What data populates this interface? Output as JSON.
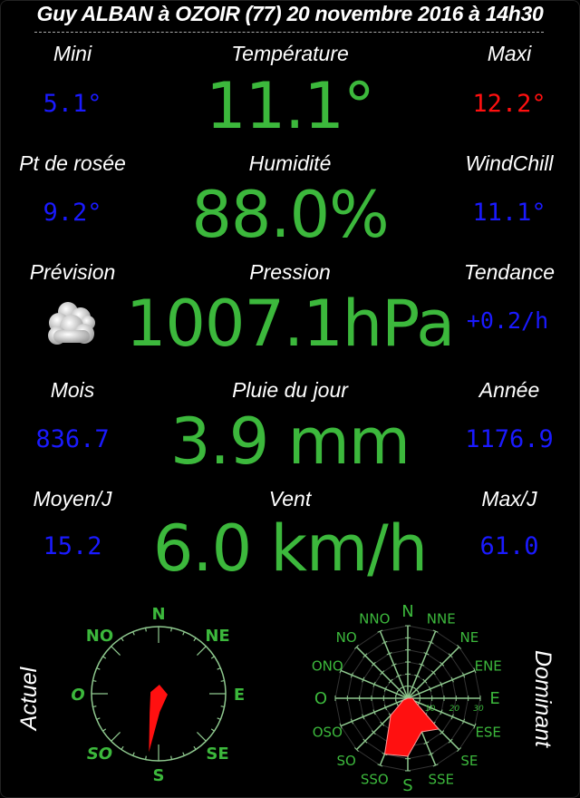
{
  "header": {
    "title": "Guy ALBAN à OZOIR (77) 20 novembre 2016 à 14h30"
  },
  "rows": [
    {
      "left_label": "Mini",
      "left_value": "5.1°",
      "center_label": "Température",
      "center_value": "11.1°",
      "right_label": "Maxi",
      "right_value": "12.2°"
    },
    {
      "left_label": "Pt de rosée",
      "left_value": "9.2°",
      "center_label": "Humidité",
      "center_value": "88.0%",
      "right_label": "WindChill",
      "right_value": "11.1°"
    },
    {
      "left_label": "Prévision",
      "left_icon": "cloudy-icon",
      "center_label": "Pression",
      "center_value": "1007.1hPa",
      "right_label": "Tendance",
      "right_value": "+0.2/h"
    },
    {
      "left_label": "Mois",
      "left_value": "836.7",
      "center_label": "Pluie du jour",
      "center_value": "3.9 mm",
      "right_label": "Année",
      "right_value": "1176.9"
    },
    {
      "left_label": "Moyen/J",
      "left_value": "15.2",
      "center_label": "Vent",
      "center_value": "6.0 km/h",
      "right_label": "Max/J",
      "right_value": "61.0"
    }
  ],
  "colors": {
    "green": "#3cb83c",
    "blue": "#1a1aff",
    "red": "#ff1010",
    "white": "#ffffff"
  },
  "compass": {
    "label": "Actuel",
    "direction_deg": 185,
    "points": [
      "N",
      "NE",
      "E",
      "SE",
      "S",
      "SO",
      "O",
      "NO"
    ]
  },
  "rose": {
    "label": "Dominant",
    "directions": [
      "N",
      "NNE",
      "NE",
      "ENE",
      "E",
      "ESE",
      "SE",
      "SSE",
      "S",
      "SSO",
      "SO",
      "OSO",
      "O",
      "ONO",
      "NO",
      "NNO"
    ],
    "values": [
      0,
      0,
      0,
      0,
      2,
      3,
      18,
      15,
      24,
      25,
      10,
      2,
      0,
      0,
      0,
      0
    ],
    "max": 30,
    "ticks": [
      "10",
      "20",
      "30"
    ]
  }
}
